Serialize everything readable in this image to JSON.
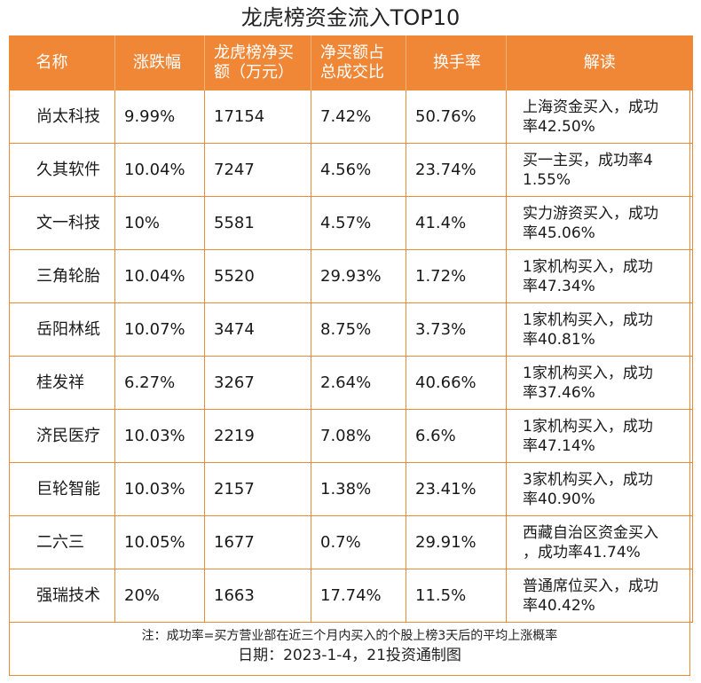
{
  "title": "龙虎榜资金流入TOP10",
  "headers": {
    "name": "名称",
    "change": "涨跌幅",
    "net_buy_line1": "龙虎榜净买",
    "net_buy_line2": "额（万元）",
    "ratio_line1": "净买额占",
    "ratio_line2": "总成交比",
    "turnover": "换手率",
    "interpretation": "解读"
  },
  "rows": [
    {
      "name": "尚太科技",
      "change": "9.99%",
      "net_buy": "17154",
      "ratio": "7.42%",
      "turnover": "50.76%",
      "interp_line1": "上海资金买入，成功",
      "interp_line2": "率42.50%"
    },
    {
      "name": "久其软件",
      "change": "10.04%",
      "net_buy": "7247",
      "ratio": "4.56%",
      "turnover": "23.74%",
      "interp_line1": "买一主买，成功率4",
      "interp_line2": "1.55%"
    },
    {
      "name": "文一科技",
      "change": "10%",
      "net_buy": "5581",
      "ratio": "4.57%",
      "turnover": "41.4%",
      "interp_line1": "实力游资买入，成功",
      "interp_line2": "率45.06%"
    },
    {
      "name": "三角轮胎",
      "change": "10.04%",
      "net_buy": "5520",
      "ratio": "29.93%",
      "turnover": "1.72%",
      "interp_line1": "1家机构买入，成功",
      "interp_line2": "率47.34%"
    },
    {
      "name": "岳阳林纸",
      "change": "10.07%",
      "net_buy": "3474",
      "ratio": "8.75%",
      "turnover": "3.73%",
      "interp_line1": "1家机构买入，成功",
      "interp_line2": "率40.81%"
    },
    {
      "name": "桂发祥",
      "change": "6.27%",
      "net_buy": "3267",
      "ratio": "2.64%",
      "turnover": "40.66%",
      "interp_line1": "1家机构买入，成功",
      "interp_line2": "率37.46%"
    },
    {
      "name": "济民医疗",
      "change": "10.03%",
      "net_buy": "2219",
      "ratio": "7.08%",
      "turnover": "6.6%",
      "interp_line1": "1家机构买入，成功",
      "interp_line2": "率47.14%"
    },
    {
      "name": "巨轮智能",
      "change": "10.03%",
      "net_buy": "2157",
      "ratio": "1.38%",
      "turnover": "23.41%",
      "interp_line1": "3家机构买入，成功",
      "interp_line2": "率40.90%"
    },
    {
      "name": "二六三",
      "change": "10.05%",
      "net_buy": "1677",
      "ratio": "0.7%",
      "turnover": "29.91%",
      "interp_line1": "西藏自治区资金买入",
      "interp_line2": "，成功率41.74%"
    },
    {
      "name": "强瑞技术",
      "change": "20%",
      "net_buy": "1663",
      "ratio": "17.74%",
      "turnover": "11.5%",
      "interp_line1": "普通席位买入，成功",
      "interp_line2": "率40.42%"
    }
  ],
  "note": "注：成功率=买方营业部在近三个月内买入的个股上榜3天后的平均上涨概率",
  "date_line": "日期：2023-1-4，21投资通制图",
  "colors": {
    "header_bg": "#f08736",
    "border": "#ef8a34"
  }
}
